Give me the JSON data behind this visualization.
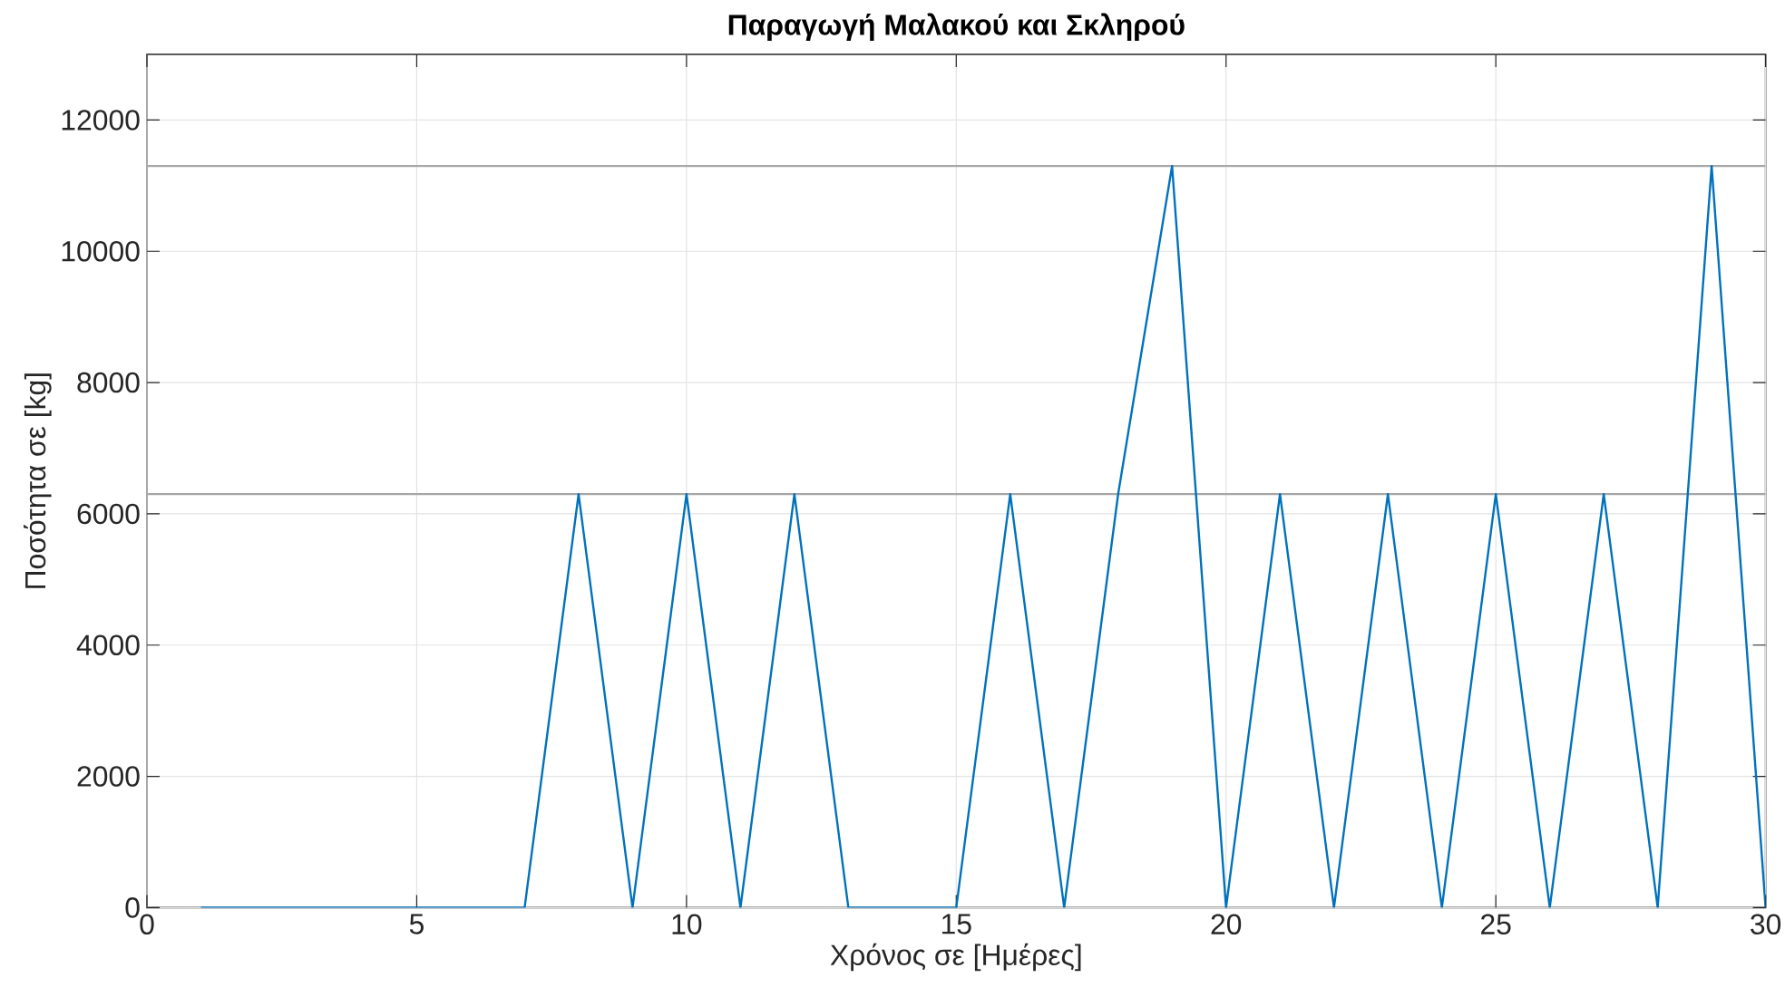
{
  "chart_data": {
    "type": "line",
    "title": "Παραγωγή Μαλακού και Σκληρού",
    "xlabel": "Χρόνος σε [Ημέρες]",
    "ylabel": "Ποσότητα σε [kg]",
    "x": [
      1,
      2,
      3,
      4,
      5,
      6,
      7,
      8,
      9,
      10,
      11,
      12,
      13,
      14,
      15,
      16,
      17,
      18,
      19,
      20,
      21,
      22,
      23,
      24,
      25,
      26,
      27,
      28,
      29,
      30
    ],
    "values": [
      0,
      0,
      0,
      0,
      0,
      0,
      0,
      6300,
      0,
      6300,
      0,
      6300,
      0,
      0,
      0,
      6300,
      0,
      6300,
      11300,
      0,
      6300,
      0,
      6300,
      0,
      6300,
      0,
      6300,
      0,
      11300,
      0
    ],
    "color": "#0072bd",
    "xlim": [
      0,
      30
    ],
    "ylim": [
      0,
      13000
    ],
    "xticks": [
      0,
      5,
      10,
      15,
      20,
      25,
      30
    ],
    "yticks": [
      0,
      2000,
      4000,
      6000,
      8000,
      10000,
      12000
    ],
    "grid": true,
    "ref_lines": [
      {
        "axis": "y",
        "value": 11300,
        "color": "#a6a6a6"
      },
      {
        "axis": "y",
        "value": 6300,
        "color": "#a6a6a6"
      }
    ]
  }
}
